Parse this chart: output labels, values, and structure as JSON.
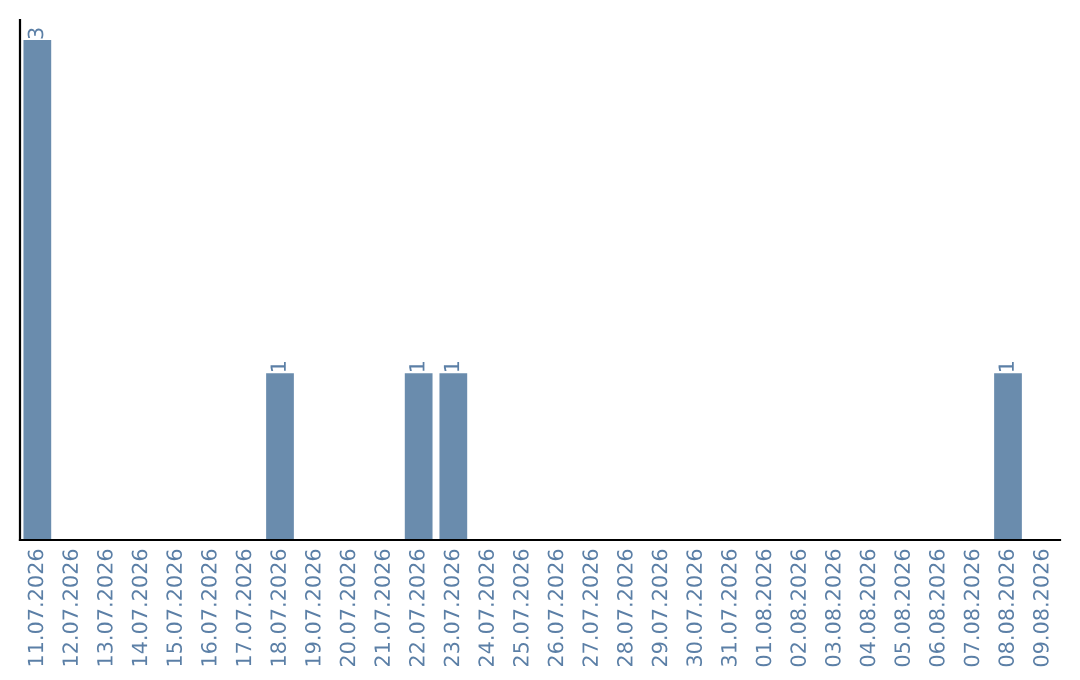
{
  "chart_data": {
    "type": "bar",
    "categories": [
      "11.07.2026",
      "12.07.2026",
      "13.07.2026",
      "14.07.2026",
      "15.07.2026",
      "16.07.2026",
      "17.07.2026",
      "18.07.2026",
      "19.07.2026",
      "20.07.2026",
      "21.07.2026",
      "22.07.2026",
      "23.07.2026",
      "24.07.2026",
      "25.07.2026",
      "26.07.2026",
      "27.07.2026",
      "28.07.2026",
      "29.07.2026",
      "30.07.2026",
      "31.07.2026",
      "01.08.2026",
      "02.08.2026",
      "03.08.2026",
      "04.08.2026",
      "05.08.2026",
      "06.08.2026",
      "07.08.2026",
      "08.08.2026",
      "09.08.2026"
    ],
    "values": [
      3,
      0,
      0,
      0,
      0,
      0,
      0,
      1,
      0,
      0,
      0,
      1,
      1,
      0,
      0,
      0,
      0,
      0,
      0,
      0,
      0,
      0,
      0,
      0,
      0,
      0,
      0,
      0,
      1,
      0
    ],
    "value_labels": [
      "3",
      null,
      null,
      null,
      null,
      null,
      null,
      "1",
      null,
      null,
      null,
      "1",
      "1",
      null,
      null,
      null,
      null,
      null,
      null,
      null,
      null,
      null,
      null,
      null,
      null,
      null,
      null,
      null,
      "1",
      null
    ],
    "color": "#6a8cad",
    "tick_labels": "x",
    "grid": false,
    "legend": false
  }
}
